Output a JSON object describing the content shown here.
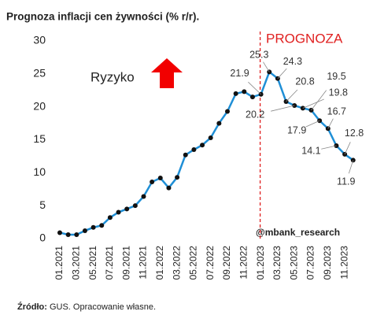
{
  "chart_data": {
    "type": "line",
    "title": "Prognoza inflacji cen żywności (% r/r).",
    "forecast_label": "PROGNOZA",
    "risk_label": "Ryzyko",
    "watermark": "@mbank_research",
    "source_label": "Źródło:",
    "source_text": "GUS. Opracowanie własne.",
    "categories": [
      "01.2021",
      null,
      "03.2021",
      null,
      "05.2021",
      null,
      "07.2021",
      null,
      "09.2021",
      null,
      "11.2021",
      null,
      "01.2022",
      null,
      "03.2022",
      null,
      "05.2022",
      null,
      "07.2022",
      null,
      "09.2022",
      null,
      "11.2022",
      null,
      "01.2023",
      null,
      "03.2023",
      null,
      "05.2023",
      null,
      "07.2023",
      null,
      "09.2023",
      null,
      "11.2023",
      null
    ],
    "series": [
      {
        "name": "Inflacja cen żywności",
        "color": "#1f8fd6",
        "values": [
          0.9,
          0.6,
          0.6,
          1.2,
          1.7,
          2.0,
          3.2,
          4.0,
          4.5,
          5.0,
          6.4,
          8.6,
          9.2,
          7.7,
          9.3,
          12.7,
          13.5,
          14.2,
          15.3,
          17.5,
          19.3,
          22.0,
          22.3,
          21.5,
          21.9,
          25.3,
          24.3,
          20.8,
          20.2,
          19.8,
          19.5,
          17.9,
          16.7,
          14.1,
          12.8,
          11.9
        ]
      }
    ],
    "ylim": [
      0,
      30
    ],
    "yticks": [
      0,
      5,
      10,
      15,
      20,
      25,
      30
    ],
    "grid": false
  }
}
